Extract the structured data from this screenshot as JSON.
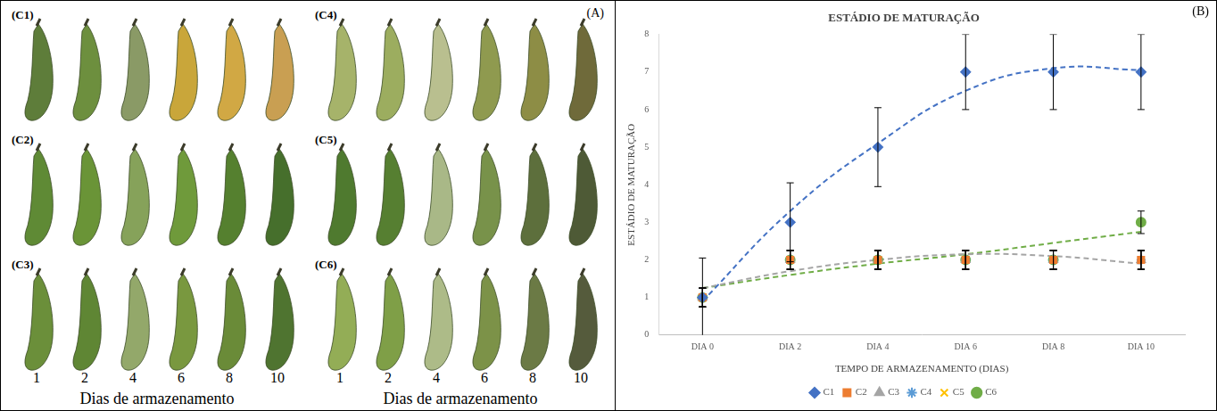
{
  "panel_a": {
    "label": "(A)",
    "groups": [
      {
        "label": "(C1)"
      },
      {
        "label": "(C2)"
      },
      {
        "label": "(C3)"
      },
      {
        "label": "(C4)"
      },
      {
        "label": "(C5)"
      },
      {
        "label": "(C6)"
      }
    ],
    "days": [
      "1",
      "2",
      "4",
      "6",
      "8",
      "10"
    ],
    "axis_label": "Dias de armazenamento"
  },
  "panel_b": {
    "label": "(B)"
  },
  "chart_data": {
    "type": "line",
    "title": "ESTÁDIO DE MATURAÇÃO",
    "x_label": "TEMPO DE ARMAZENAMENTO (DIAS)",
    "y_label": "ESTÁDIO DE MATURAÇÃO",
    "categories": [
      "DIA 0",
      "DIA 2",
      "DIA 4",
      "DIA 6",
      "DIA 8",
      "DIA 10"
    ],
    "ylim": [
      0,
      8
    ],
    "yticks": [
      0,
      1,
      2,
      3,
      4,
      5,
      6,
      7,
      8
    ],
    "grid": false,
    "legend": "bottom",
    "series": [
      {
        "name": "C1",
        "color": "#4472c4",
        "marker": "diamond",
        "line_style": "none",
        "values": [
          1,
          3,
          5,
          7,
          7,
          7
        ],
        "errors": [
          1.05,
          1.05,
          1.05,
          1,
          1,
          1
        ],
        "trend": [
          0.9,
          3.3,
          5.1,
          6.5,
          7.1,
          7.05
        ]
      },
      {
        "name": "C2",
        "color": "#ed7d31",
        "marker": "square",
        "line_style": "none",
        "values": [
          1,
          2,
          2,
          2,
          2,
          2
        ],
        "errors": [
          0.25,
          0.25,
          0.25,
          0.25,
          0.25,
          0.25
        ]
      },
      {
        "name": "C3",
        "color": "#a5a5a5",
        "marker": "triangle",
        "line_style": "none",
        "values": [
          1,
          2,
          2,
          2,
          2,
          2
        ],
        "errors": [
          0.25,
          0.25,
          0.25,
          0.25,
          0.25,
          0.25
        ],
        "trend": [
          1.25,
          1.7,
          2.0,
          2.15,
          2.1,
          1.9
        ]
      },
      {
        "name": "C4",
        "color": "#5b9bd5",
        "marker": "star",
        "line_style": "none",
        "values": [
          1,
          2,
          2,
          2,
          2,
          2
        ],
        "errors": [
          0.25,
          0.25,
          0.25,
          0.25,
          0.25,
          0.25
        ]
      },
      {
        "name": "C5",
        "color": "#ffc000",
        "marker": "x",
        "line_style": "none",
        "values": [
          1,
          2,
          2,
          2,
          2,
          2
        ],
        "errors": [
          0.25,
          0.25,
          0.25,
          0.25,
          0.25,
          0.25
        ]
      },
      {
        "name": "C6",
        "color": "#70ad47",
        "marker": "circle",
        "line_style": "none",
        "values": [
          1,
          2,
          2,
          2,
          2,
          3
        ],
        "errors": [
          0.25,
          0.25,
          0.25,
          0.25,
          0.25,
          0.3
        ],
        "trend": [
          1.25,
          1.6,
          1.9,
          2.15,
          2.45,
          2.75
        ]
      }
    ]
  }
}
